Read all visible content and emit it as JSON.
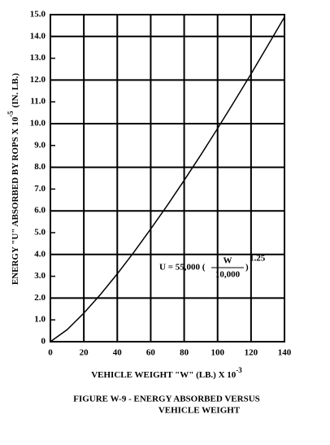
{
  "chart_data": {
    "type": "line",
    "x": [
      0,
      10,
      20,
      30,
      40,
      50,
      60,
      70,
      80,
      90,
      100,
      110,
      120,
      130,
      140
    ],
    "values": [
      0,
      0.55,
      1.31,
      2.17,
      3.11,
      4.11,
      5.17,
      6.26,
      7.4,
      8.57,
      9.78,
      11.02,
      12.28,
      13.58,
      14.89
    ],
    "color": "#000000",
    "xlim": [
      0,
      140
    ],
    "xticks": [
      0,
      20,
      40,
      60,
      80,
      100,
      120,
      140
    ],
    "ylim": [
      0,
      15
    ],
    "yticks": [
      0,
      {
        "value": 1,
        "label": "1.0"
      },
      {
        "value": 2,
        "label": "2.0"
      },
      {
        "value": 3,
        "label": "3.0"
      },
      {
        "value": 4,
        "label": "4.0"
      },
      {
        "value": 5,
        "label": "5.0"
      },
      {
        "value": 6,
        "label": "6.0"
      },
      {
        "value": 7,
        "label": "7.0"
      },
      {
        "value": 8,
        "label": "8.0"
      },
      {
        "value": 9,
        "label": "9.0"
      },
      {
        "value": 10,
        "label": "10.0"
      },
      {
        "value": 11,
        "label": "11.0"
      },
      {
        "value": 12,
        "label": "12.0"
      },
      {
        "value": 13,
        "label": "13.0"
      },
      {
        "value": 14,
        "label": "14.0"
      },
      {
        "value": 15,
        "label": "15.0"
      }
    ],
    "grid": true,
    "y_label": {
      "text": "ENERGY \"U\" ABSORBED BY ROPS X 10",
      "exponent": "-5",
      "unit": "(IN. LB.)"
    },
    "x_label": {
      "text": "VEHICLE WEIGHT \"W\" (LB.) X 10",
      "exponent": "-3"
    },
    "annotation": {
      "lead": "U = 55,000 (",
      "numerator": "W",
      "denominator": "10,000",
      "close": ")",
      "exponent": "1.25"
    },
    "caption": [
      "FIGURE W-9 - ENERGY ABSORBED VERSUS",
      "VEHICLE WEIGHT"
    ]
  }
}
